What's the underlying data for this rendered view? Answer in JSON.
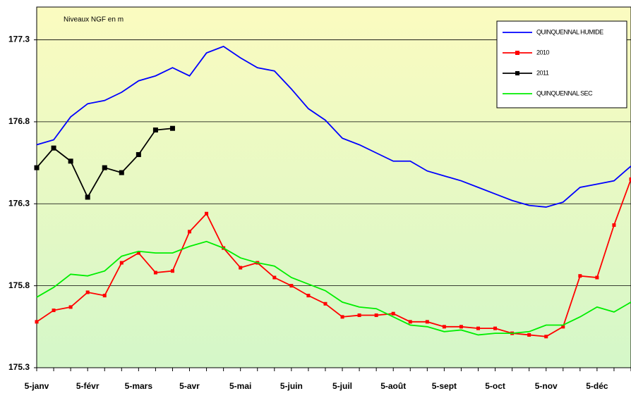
{
  "chart_data": {
    "type": "line",
    "title": "Niveaux NGF en m",
    "categories": [
      "5-janv",
      null,
      null,
      "5-févr",
      null,
      null,
      "5-mars",
      null,
      null,
      "5-avr",
      null,
      null,
      "5-mai",
      null,
      null,
      "5-juin",
      null,
      null,
      "5-juil",
      null,
      null,
      "5-août",
      null,
      null,
      "5-sept",
      null,
      null,
      "5-oct",
      null,
      null,
      "5-nov",
      null,
      null,
      "5-déc",
      null,
      null
    ],
    "series": [
      {
        "name": "QUINQUENNAL HUMIDE",
        "color": "#0000ff",
        "marker": "none",
        "values": [
          176.66,
          176.69,
          176.83,
          176.91,
          176.93,
          176.98,
          177.05,
          177.08,
          177.13,
          177.08,
          177.22,
          177.26,
          177.19,
          177.13,
          177.11,
          177.0,
          176.88,
          176.81,
          176.7,
          176.66,
          176.61,
          176.56,
          176.56,
          176.5,
          176.47,
          176.44,
          176.4,
          176.36,
          176.32,
          176.29,
          176.28,
          176.31,
          176.4,
          176.42,
          176.44,
          176.53
        ]
      },
      {
        "name": "2010",
        "color": "#ff0000",
        "marker": "square",
        "values": [
          175.58,
          175.65,
          175.67,
          175.76,
          175.74,
          175.94,
          176.0,
          175.88,
          175.89,
          176.13,
          176.24,
          176.03,
          175.91,
          175.94,
          175.85,
          175.8,
          175.74,
          175.69,
          175.61,
          175.62,
          175.62,
          175.63,
          175.58,
          175.58,
          175.55,
          175.55,
          175.54,
          175.54,
          175.51,
          175.5,
          175.49,
          175.55,
          175.86,
          175.85,
          176.17,
          176.45
        ]
      },
      {
        "name": "2011",
        "color": "#000000",
        "marker": "square",
        "values": [
          176.52,
          176.64,
          176.56,
          176.34,
          176.52,
          176.49,
          176.6,
          176.75,
          176.76,
          null,
          null,
          null,
          null,
          null,
          null,
          null,
          null,
          null,
          null,
          null,
          null,
          null,
          null,
          null,
          null,
          null,
          null,
          null,
          null,
          null,
          null,
          null,
          null,
          null,
          null,
          null
        ]
      },
      {
        "name": "QUINQUENNAL SEC",
        "color": "#00ee00",
        "marker": "none",
        "values": [
          175.73,
          175.79,
          175.87,
          175.86,
          175.89,
          175.98,
          176.01,
          176.0,
          176.0,
          176.04,
          176.07,
          176.03,
          175.97,
          175.94,
          175.92,
          175.85,
          175.81,
          175.77,
          175.7,
          175.67,
          175.66,
          175.61,
          175.56,
          175.55,
          175.52,
          175.53,
          175.5,
          175.51,
          175.51,
          175.52,
          175.56,
          175.56,
          175.61,
          175.67,
          175.64,
          175.7
        ]
      }
    ],
    "ylim": [
      175.3,
      177.5
    ],
    "yticks": [
      {
        "value": 175.3,
        "label": "175.3"
      },
      {
        "value": 175.8,
        "label": "175.8"
      },
      {
        "value": 176.3,
        "label": "176.3"
      },
      {
        "value": 176.8,
        "label": "176.8"
      },
      {
        "value": 177.3,
        "label": "177.3"
      }
    ],
    "grid": true,
    "legend": "top-right"
  }
}
